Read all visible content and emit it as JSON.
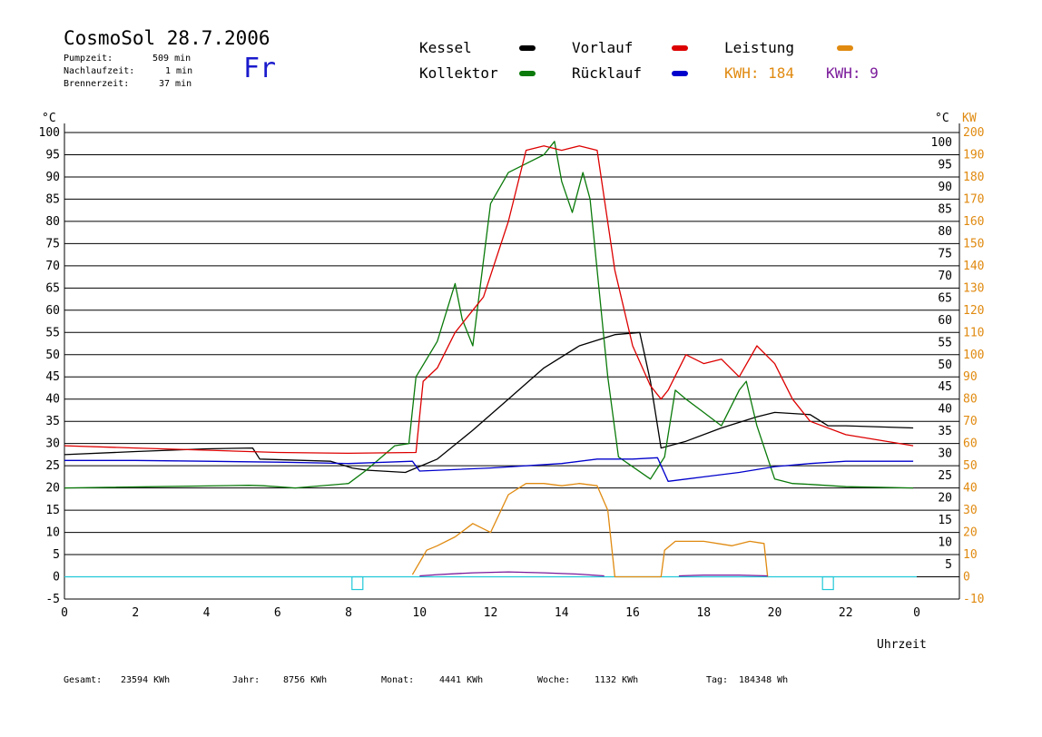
{
  "header": {
    "title": "CosmoSol 28.7.2006",
    "day": "Fr",
    "stats": [
      {
        "label": "Pumpzeit:",
        "value": "509 min"
      },
      {
        "label": "Nachlaufzeit:",
        "value": "1 min"
      },
      {
        "label": "Brennerzeit:",
        "value": "37 min"
      }
    ]
  },
  "legend": {
    "kessel": "Kessel",
    "kollektor": "Kollektor",
    "vorlauf": "Vorlauf",
    "ruecklauf": "Rücklauf",
    "leistung": "Leistung",
    "kwh1": "KWH: 184",
    "kwh2": "KWH: 9"
  },
  "colors": {
    "kessel": "#000000",
    "kollektor": "#0a7a0a",
    "vorlauf": "#dd0000",
    "ruecklauf": "#0000cc",
    "leistung": "#e08a10",
    "purple": "#7a1a9a",
    "cyan": "#22c8d8"
  },
  "footer": [
    {
      "label": "Gesamt:",
      "value": "23594 KWh"
    },
    {
      "label": "Jahr:",
      "value": "8756 KWh"
    },
    {
      "label": "Monat:",
      "value": "4441 KWh"
    },
    {
      "label": "Woche:",
      "value": "1132 KWh"
    },
    {
      "label": "Tag:",
      "value": "184348 Wh"
    }
  ],
  "chart_data": {
    "type": "line",
    "xlabel": "Uhrzeit",
    "ylabel_left": "°C",
    "ylabel_right": "°C",
    "ylabel_right2": "KW",
    "xlim": [
      0,
      24
    ],
    "ylim": [
      -5,
      100
    ],
    "y2lim": [
      -10,
      200
    ],
    "grid": true,
    "x_ticks": [
      "0",
      "2",
      "4",
      "6",
      "8",
      "10",
      "12",
      "14",
      "16",
      "18",
      "20",
      "22",
      "0"
    ],
    "y_ticks_left": [
      "100",
      "95",
      "90",
      "85",
      "80",
      "75",
      "70",
      "65",
      "60",
      "55",
      "50",
      "45",
      "40",
      "35",
      "30",
      "25",
      "20",
      "15",
      "10",
      "5",
      "0",
      "-5"
    ],
    "y_ticks_right": [
      "100",
      "95",
      "90",
      "85",
      "80",
      "75",
      "70",
      "65",
      "60",
      "55",
      "50",
      "45",
      "40",
      "35",
      "30",
      "25",
      "20",
      "15",
      "10",
      "5"
    ],
    "y_ticks_kw": [
      "200",
      "190",
      "180",
      "170",
      "160",
      "150",
      "140",
      "130",
      "120",
      "110",
      "100",
      "90",
      "80",
      "70",
      "60",
      "50",
      "40",
      "30",
      "20",
      "10",
      "0",
      "-10"
    ],
    "series": [
      {
        "name": "Kessel",
        "color": "#000000",
        "x": [
          0,
          2,
          4,
          5.3,
          5.5,
          7.5,
          8.1,
          8.5,
          9.6,
          10.5,
          11.5,
          12.5,
          13.5,
          14.5,
          15.5,
          16.2,
          16.5,
          16.8,
          17.5,
          18.5,
          19.5,
          20,
          21,
          21.5,
          22,
          23.9
        ],
        "y": [
          27.5,
          28.2,
          28.8,
          29,
          26.5,
          26,
          24.5,
          24,
          23.5,
          26.5,
          33,
          40,
          47,
          52,
          54.5,
          55,
          44,
          29,
          30.5,
          33.5,
          36,
          37,
          36.5,
          34,
          34,
          33.5
        ]
      },
      {
        "name": "Kollektor",
        "color": "#0a7a0a",
        "x": [
          0,
          5.2,
          5.6,
          6.5,
          8,
          8.5,
          9.3,
          9.7,
          9.9,
          10.5,
          11,
          11.2,
          11.5,
          12,
          12.5,
          13,
          13.5,
          13.8,
          14,
          14.3,
          14.6,
          14.8,
          15.3,
          15.6,
          16.5,
          16.9,
          17.2,
          17.5,
          18,
          18.5,
          19,
          19.2,
          19.5,
          20,
          20.5,
          21,
          22,
          23.9
        ],
        "y": [
          20,
          20.6,
          20.5,
          20,
          21,
          24,
          29.5,
          30,
          45,
          53,
          66,
          58,
          52,
          84,
          91,
          93,
          95,
          98,
          89,
          82,
          91,
          85,
          45,
          27,
          22,
          27,
          42,
          40,
          37,
          34,
          42,
          44,
          34,
          22,
          21,
          20.8,
          20.3,
          20
        ]
      },
      {
        "name": "Vorlauf",
        "color": "#dd0000",
        "x": [
          0,
          2,
          4,
          6,
          8,
          9.9,
          10.1,
          10.5,
          11,
          11.5,
          11.8,
          12.5,
          13,
          13.5,
          14,
          14.5,
          15,
          15.5,
          16,
          16.5,
          16.8,
          17,
          17.5,
          18,
          18.5,
          19,
          19.5,
          20,
          20.5,
          21,
          22,
          23.9
        ],
        "y": [
          29.5,
          29,
          28.5,
          28,
          27.8,
          28,
          44,
          47,
          55,
          60,
          63,
          80,
          96,
          97,
          96,
          97,
          96,
          69,
          52,
          43,
          40,
          42,
          50,
          48,
          49,
          45,
          52,
          48,
          40,
          35,
          32,
          29.5
        ]
      },
      {
        "name": "Rücklauf",
        "color": "#0000cc",
        "x": [
          0,
          2,
          4,
          6,
          8,
          9.8,
          10,
          12,
          14,
          15,
          16,
          16.7,
          17,
          18,
          19,
          20,
          21,
          22,
          23.9
        ],
        "y": [
          26.2,
          26.2,
          26,
          25.8,
          25.5,
          26,
          23.8,
          24.5,
          25.5,
          26.5,
          26.5,
          26.8,
          21.5,
          22.5,
          23.5,
          24.8,
          25.5,
          26,
          26
        ]
      },
      {
        "name": "Leistung",
        "color": "#e08a10",
        "x": [
          9.8,
          10.2,
          10.5,
          11,
          11.5,
          12,
          12.5,
          13,
          13.5,
          14,
          14.5,
          15,
          15.3,
          15.5,
          16.8,
          16.9,
          17.2,
          18,
          18.8,
          19.3,
          19.7,
          19.8
        ],
        "y": [
          1,
          12,
          14,
          18,
          24,
          20,
          37,
          42,
          42,
          41,
          42,
          41,
          30,
          0,
          0,
          12,
          16,
          16,
          14,
          16,
          15,
          0
        ]
      }
    ]
  }
}
